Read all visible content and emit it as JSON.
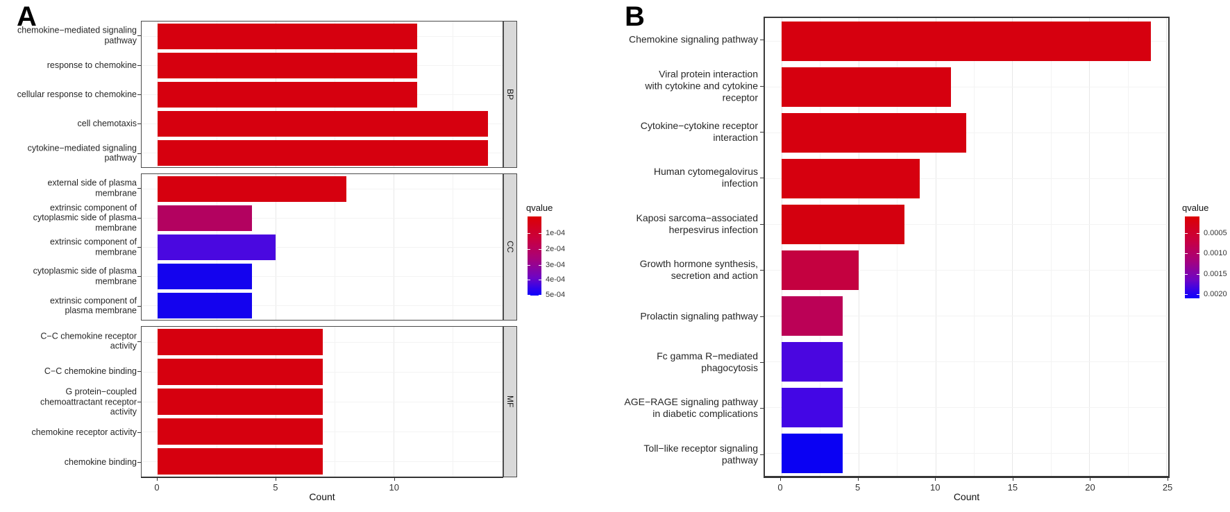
{
  "chart_data": [
    {
      "id": "A",
      "panel_label": "A",
      "type": "bar",
      "orientation": "horizontal",
      "xlabel": "Count",
      "xlim": [
        0,
        14.6
      ],
      "x_ticks": [
        0,
        5,
        10
      ],
      "x_minor_ticks": [
        2.5,
        7.5,
        12.5
      ],
      "grid": true,
      "facets": [
        {
          "label": "BP",
          "categories": [
            "chemokine−mediated signaling\npathway",
            "response to chemokine",
            "cellular response to chemokine",
            "cell chemotaxis",
            "cytokine−mediated signaling\npathway"
          ],
          "values": [
            11,
            11,
            11,
            14,
            14
          ],
          "colors": [
            "#d6000f",
            "#d6000f",
            "#d6000f",
            "#d6000f",
            "#d6000f"
          ]
        },
        {
          "label": "CC",
          "categories": [
            "external side of plasma\nmembrane",
            "extrinsic component of\ncytoplasmic side of plasma\nmembrane",
            "extrinsic component of\nmembrane",
            "cytoplasmic side of plasma\nmembrane",
            "extrinsic component of\nplasma membrane"
          ],
          "values": [
            8,
            4,
            5,
            4,
            4
          ],
          "colors": [
            "#d6000f",
            "#b30260",
            "#4a08e0",
            "#1403ee",
            "#1403ee"
          ]
        },
        {
          "label": "MF",
          "categories": [
            "C−C chemokine receptor\nactivity",
            "C−C chemokine binding",
            "G protein−coupled\nchemoattractant receptor\nactivity",
            "chemokine receptor activity",
            "chemokine binding"
          ],
          "values": [
            7,
            7,
            7,
            7,
            7
          ],
          "colors": [
            "#d6000f",
            "#d6000f",
            "#d6000f",
            "#d6000f",
            "#d6000f"
          ]
        }
      ],
      "legend": {
        "title": "qvalue",
        "tick_labels": [
          "1e-04",
          "2e-04",
          "3e-04",
          "4e-04",
          "5e-04"
        ],
        "tick_positions_pct": [
          21,
          41,
          61,
          80,
          99
        ],
        "gradient_top_color": "#dc0003",
        "gradient_bottom_color": "#0f00fa",
        "position": "right"
      }
    },
    {
      "id": "B",
      "panel_label": "B",
      "type": "bar",
      "orientation": "horizontal",
      "xlabel": "Count",
      "xlim": [
        0,
        24.5
      ],
      "x_ticks": [
        0,
        5,
        10,
        15,
        20,
        25
      ],
      "x_minor_ticks": [
        2.5,
        7.5,
        12.5,
        17.5,
        22.5
      ],
      "grid": true,
      "categories": [
        "Chemokine signaling pathway",
        "Viral protein interaction\nwith cytokine and cytokine\nreceptor",
        "Cytokine−cytokine receptor\ninteraction",
        "Human cytomegalovirus\ninfection",
        "Kaposi sarcoma−associated\nherpesvirus infection",
        "Growth hormone synthesis,\nsecretion and action",
        "Prolactin signaling pathway",
        "Fc gamma R−mediated\nphagocytosis",
        "AGE−RAGE signaling pathway\nin diabetic complications",
        "Toll−like receptor signaling\npathway"
      ],
      "values": [
        24,
        11,
        12,
        9,
        8,
        5,
        4,
        4,
        4,
        4
      ],
      "colors": [
        "#d6000f",
        "#d6000f",
        "#d6000f",
        "#d6000f",
        "#d4000f",
        "#c40140",
        "#bb0156",
        "#4a06e0",
        "#4306e5",
        "#0a01f3"
      ],
      "legend": {
        "title": "qvalue",
        "tick_labels": [
          "0.0005",
          "0.0010",
          "0.0015",
          "0.0020"
        ],
        "tick_positions_pct": [
          20,
          45,
          70,
          95
        ],
        "gradient_top_color": "#dc0003",
        "gradient_bottom_color": "#0f00fa",
        "position": "right"
      }
    }
  ]
}
